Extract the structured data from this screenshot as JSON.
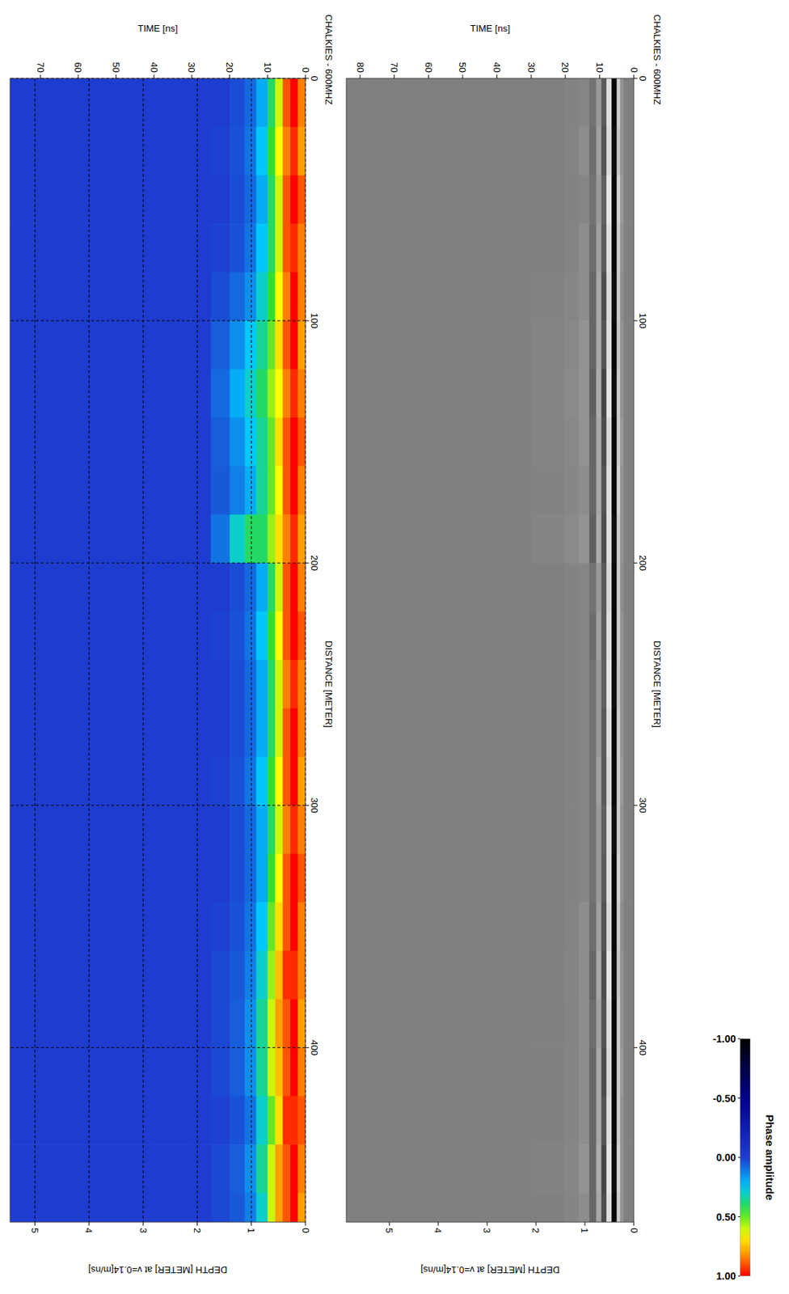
{
  "chart_data": [
    {
      "type": "heatmap",
      "title": "CHALKIES - 600MHZ",
      "x_label": "DISTANCE [METER]",
      "y_label": "TIME [ns]",
      "y2_label": "DEPTH [METER] at v=0.14[m/ns]",
      "color": "gray",
      "grid": false,
      "xlim": [
        0,
        472
      ],
      "xticks": [
        0,
        100,
        200,
        300,
        400
      ],
      "ylim": [
        0,
        84
      ],
      "yticks": [
        0,
        10,
        20,
        30,
        40,
        50,
        60,
        70,
        80
      ],
      "y2lim": [
        0,
        5.88
      ],
      "y2ticks": [
        0,
        1,
        2,
        3,
        4,
        5
      ],
      "x_edges": [
        0,
        20,
        40,
        60,
        80,
        100,
        120,
        140,
        160,
        180,
        200,
        220,
        240,
        260,
        280,
        300,
        320,
        340,
        360,
        380,
        400,
        420,
        440,
        460,
        472
      ],
      "y_edges": [
        0,
        3,
        4,
        5,
        6.5,
        8,
        9.5,
        11,
        13,
        16,
        20,
        30,
        84
      ],
      "cells": [
        [
          0,
          0,
          0,
          0,
          0,
          0,
          0,
          0,
          0,
          0,
          0,
          0,
          0,
          0,
          0,
          0,
          0,
          0,
          0,
          0,
          0,
          0,
          0,
          0
        ],
        [
          0.15,
          0.15,
          0.2,
          0.15,
          0.1,
          0.15,
          0.15,
          0.2,
          0.15,
          0.15,
          0.1,
          0.15,
          0.15,
          0.15,
          0.2,
          0.15,
          0.15,
          0.1,
          0.15,
          0.15,
          0.2,
          0.15,
          0.15,
          0.15
        ],
        [
          0.6,
          0.55,
          0.65,
          0.6,
          0.6,
          0.55,
          0.6,
          0.6,
          0.65,
          0.6,
          0.6,
          0.6,
          0.55,
          0.6,
          0.6,
          0.6,
          0.65,
          0.6,
          0.55,
          0.6,
          0.6,
          0.6,
          0.65,
          0.6
        ],
        [
          -0.95,
          -0.9,
          -0.95,
          -0.95,
          -0.9,
          -0.95,
          -0.9,
          -0.95,
          -0.95,
          -0.9,
          -0.95,
          -0.95,
          -0.9,
          -0.95,
          -0.95,
          -0.9,
          -0.95,
          -0.95,
          -0.9,
          -0.95,
          -0.95,
          -0.95,
          -0.9,
          -0.95
        ],
        [
          0.75,
          0.7,
          0.8,
          0.75,
          0.7,
          0.75,
          0.8,
          0.7,
          0.75,
          0.75,
          0.7,
          0.75,
          0.8,
          0.75,
          0.7,
          0.75,
          0.75,
          0.7,
          0.8,
          0.75,
          0.7,
          0.75,
          0.8,
          0.75
        ],
        [
          -0.3,
          -0.35,
          -0.25,
          -0.3,
          -0.4,
          -0.35,
          -0.45,
          -0.4,
          -0.35,
          -0.4,
          -0.3,
          -0.3,
          -0.25,
          -0.3,
          -0.3,
          -0.25,
          -0.3,
          -0.35,
          -0.4,
          -0.35,
          -0.4,
          -0.35,
          -0.45,
          -0.4
        ],
        [
          0.2,
          0.25,
          0.2,
          0.25,
          0.3,
          0.3,
          0.35,
          0.3,
          0.3,
          0.35,
          0.2,
          0.25,
          0.2,
          0.2,
          0.25,
          0.2,
          0.2,
          0.25,
          0.3,
          0.25,
          0.3,
          0.3,
          0.35,
          0.3
        ],
        [
          -0.1,
          -0.15,
          -0.1,
          -0.15,
          -0.2,
          -0.2,
          -0.25,
          -0.2,
          -0.2,
          -0.25,
          -0.1,
          -0.15,
          -0.1,
          -0.1,
          -0.1,
          -0.1,
          -0.1,
          -0.15,
          -0.2,
          -0.15,
          -0.2,
          -0.2,
          -0.2,
          -0.2
        ],
        [
          0.05,
          0.1,
          0.05,
          0.1,
          0.1,
          0.15,
          0.15,
          0.15,
          0.1,
          0.15,
          0.05,
          0.05,
          0.05,
          0.05,
          0.05,
          0.05,
          0.05,
          0.1,
          0.1,
          0.1,
          0.1,
          0.1,
          0.15,
          0.1
        ],
        [
          0.02,
          0.03,
          0.02,
          0.03,
          0.05,
          0.06,
          0.08,
          0.06,
          0.05,
          0.08,
          0.02,
          0.02,
          0.02,
          0.02,
          0.02,
          0.02,
          0.02,
          0.03,
          0.04,
          0.03,
          0.04,
          0.04,
          0.05,
          0.04
        ],
        [
          0,
          0,
          0,
          0.01,
          0.02,
          0.03,
          0.04,
          0.03,
          0.02,
          0.04,
          0,
          0,
          0,
          0,
          0,
          0,
          0,
          0.01,
          0.01,
          0.01,
          0.01,
          0.01,
          0.02,
          0.01
        ],
        [
          0,
          0,
          0,
          0,
          0,
          0,
          0,
          0,
          0,
          0,
          0,
          0,
          0,
          0,
          0,
          0,
          0,
          0,
          0,
          0,
          0,
          0,
          0,
          0
        ]
      ]
    },
    {
      "type": "heatmap",
      "title": "CHALKIES - 600MHZ",
      "x_label": "DISTANCE [METER]",
      "y_label": "TIME [ns]",
      "y2_label": "DEPTH [METER] at v=0.14[m/ns]",
      "color": "jet",
      "grid": true,
      "xlim": [
        0,
        472
      ],
      "xticks": [
        0,
        100,
        200,
        300,
        400
      ],
      "ylim": [
        0,
        78
      ],
      "yticks": [
        0,
        10,
        20,
        30,
        40,
        50,
        60,
        70
      ],
      "y2lim": [
        0,
        5.46
      ],
      "y2ticks": [
        0,
        1,
        2,
        3,
        4,
        5
      ],
      "x_edges": [
        0,
        20,
        40,
        60,
        80,
        100,
        120,
        140,
        160,
        180,
        200,
        220,
        240,
        260,
        280,
        300,
        320,
        340,
        360,
        380,
        400,
        420,
        440,
        460,
        472
      ],
      "y_edges": [
        0,
        2,
        4,
        6,
        8,
        10,
        13,
        16,
        20,
        25,
        30,
        40,
        78
      ],
      "cells": [
        [
          0.85,
          0.8,
          0.9,
          0.85,
          0.85,
          0.8,
          0.85,
          0.9,
          0.85,
          0.8,
          0.85,
          0.9,
          0.85,
          0.85,
          0.8,
          0.85,
          0.9,
          0.85,
          0.85,
          0.8,
          0.85,
          0.9,
          0.85,
          0.8
        ],
        [
          1,
          0.95,
          1,
          0.95,
          1,
          1,
          0.95,
          1,
          1,
          0.95,
          1,
          1,
          0.95,
          1,
          1,
          0.95,
          1,
          1,
          0.95,
          1,
          1,
          0.95,
          1,
          1
        ],
        [
          0.9,
          0.85,
          0.9,
          0.9,
          0.85,
          0.9,
          0.85,
          0.9,
          0.9,
          0.85,
          0.9,
          0.9,
          0.85,
          0.9,
          0.9,
          0.85,
          0.9,
          0.9,
          0.95,
          0.9,
          0.9,
          0.95,
          0.9,
          0.9
        ],
        [
          0.6,
          0.65,
          0.6,
          0.6,
          0.65,
          0.7,
          0.65,
          0.7,
          0.65,
          0.7,
          0.6,
          0.65,
          0.6,
          0.6,
          0.65,
          0.6,
          0.65,
          0.7,
          0.75,
          0.8,
          0.75,
          0.7,
          0.8,
          0.8
        ],
        [
          0.4,
          0.45,
          0.4,
          0.4,
          0.45,
          0.5,
          0.55,
          0.5,
          0.5,
          0.55,
          0.4,
          0.45,
          0.4,
          0.4,
          0.45,
          0.4,
          0.45,
          0.5,
          0.55,
          0.6,
          0.6,
          0.5,
          0.6,
          0.6
        ],
        [
          0.2,
          0.25,
          0.2,
          0.25,
          0.3,
          0.35,
          0.4,
          0.35,
          0.35,
          0.4,
          0.2,
          0.25,
          0.2,
          0.2,
          0.25,
          0.2,
          0.2,
          0.25,
          0.3,
          0.35,
          0.35,
          0.3,
          0.35,
          0.3
        ],
        [
          0.08,
          0.1,
          0.08,
          0.1,
          0.15,
          0.25,
          0.3,
          0.25,
          0.2,
          0.4,
          0.08,
          0.1,
          0.08,
          0.08,
          0.1,
          0.08,
          0.08,
          0.1,
          0.12,
          0.15,
          0.15,
          0.1,
          0.15,
          0.12
        ],
        [
          0.03,
          0.04,
          0.03,
          0.04,
          0.08,
          0.15,
          0.2,
          0.15,
          0.12,
          0.3,
          0.03,
          0.04,
          0.03,
          0.03,
          0.04,
          0.03,
          0.03,
          0.04,
          0.05,
          0.06,
          0.06,
          0.04,
          0.06,
          0.05
        ],
        [
          0,
          0.01,
          0,
          0.01,
          0.03,
          0.06,
          0.08,
          0.06,
          0.05,
          0.1,
          0,
          0.01,
          0,
          0,
          0.01,
          0,
          0,
          0.01,
          0.02,
          0.02,
          0.02,
          0.01,
          0.02,
          0.02
        ],
        [
          0,
          0,
          0,
          0,
          0,
          0,
          0,
          0,
          0,
          0,
          0,
          0,
          0,
          0,
          0,
          0,
          0,
          0,
          0,
          0,
          0,
          0,
          0,
          0
        ],
        [
          0,
          0,
          0,
          0,
          0,
          0,
          0,
          0,
          0,
          0,
          0,
          0,
          0,
          0,
          0,
          0,
          0,
          0,
          0,
          0,
          0,
          0,
          0,
          0
        ],
        [
          0,
          0,
          0,
          0,
          0,
          0,
          0,
          0,
          0,
          0,
          0,
          0,
          0,
          0,
          0,
          0,
          0,
          0,
          0,
          0,
          0,
          0,
          0,
          0
        ]
      ],
      "colorbar": {
        "label": "Phase amplitude",
        "range": [
          -1,
          1
        ],
        "ticks": [
          {
            "value": -1,
            "label": "-1.00"
          },
          {
            "value": -0.5,
            "label": "-0.50"
          },
          {
            "value": 0,
            "label": "0.00"
          },
          {
            "value": 0.5,
            "label": "0.50"
          },
          {
            "value": 1,
            "label": "1.00"
          }
        ]
      }
    }
  ]
}
